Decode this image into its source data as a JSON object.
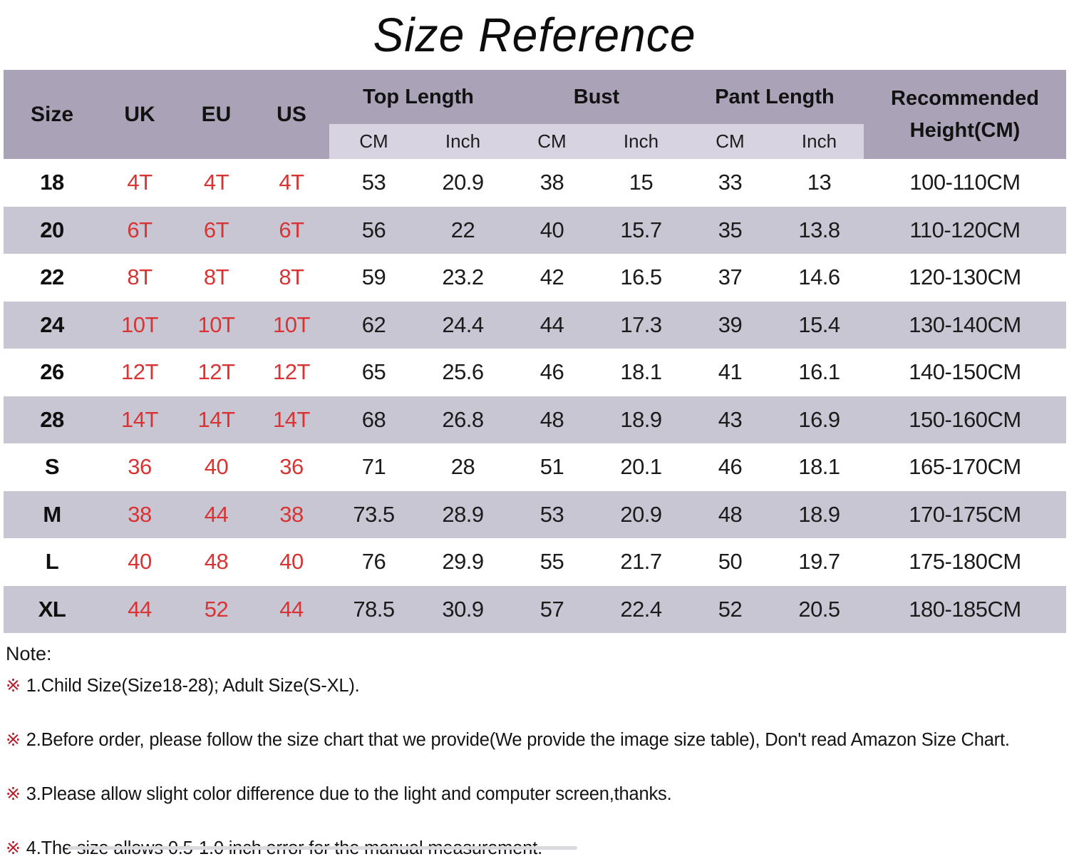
{
  "title": "Size Reference",
  "table": {
    "columns": {
      "size": "Size",
      "uk": "UK",
      "eu": "EU",
      "us": "US",
      "top_length": "Top Length",
      "bust": "Bust",
      "pant_length": "Pant Length",
      "recommended": "Recommended Height(CM)",
      "cm": "CM",
      "inch": "Inch"
    },
    "rows": [
      {
        "size": "18",
        "uk": "4T",
        "eu": "4T",
        "us": "4T",
        "top_cm": "53",
        "top_inch": "20.9",
        "bust_cm": "38",
        "bust_inch": "15",
        "pant_cm": "33",
        "pant_inch": "13",
        "height": "100-110CM"
      },
      {
        "size": "20",
        "uk": "6T",
        "eu": "6T",
        "us": "6T",
        "top_cm": "56",
        "top_inch": "22",
        "bust_cm": "40",
        "bust_inch": "15.7",
        "pant_cm": "35",
        "pant_inch": "13.8",
        "height": "110-120CM"
      },
      {
        "size": "22",
        "uk": "8T",
        "eu": "8T",
        "us": "8T",
        "top_cm": "59",
        "top_inch": "23.2",
        "bust_cm": "42",
        "bust_inch": "16.5",
        "pant_cm": "37",
        "pant_inch": "14.6",
        "height": "120-130CM"
      },
      {
        "size": "24",
        "uk": "10T",
        "eu": "10T",
        "us": "10T",
        "top_cm": "62",
        "top_inch": "24.4",
        "bust_cm": "44",
        "bust_inch": "17.3",
        "pant_cm": "39",
        "pant_inch": "15.4",
        "height": "130-140CM"
      },
      {
        "size": "26",
        "uk": "12T",
        "eu": "12T",
        "us": "12T",
        "top_cm": "65",
        "top_inch": "25.6",
        "bust_cm": "46",
        "bust_inch": "18.1",
        "pant_cm": "41",
        "pant_inch": "16.1",
        "height": "140-150CM"
      },
      {
        "size": "28",
        "uk": "14T",
        "eu": "14T",
        "us": "14T",
        "top_cm": "68",
        "top_inch": "26.8",
        "bust_cm": "48",
        "bust_inch": "18.9",
        "pant_cm": "43",
        "pant_inch": "16.9",
        "height": "150-160CM"
      },
      {
        "size": "S",
        "uk": "36",
        "eu": "40",
        "us": "36",
        "top_cm": "71",
        "top_inch": "28",
        "bust_cm": "51",
        "bust_inch": "20.1",
        "pant_cm": "46",
        "pant_inch": "18.1",
        "height": "165-170CM"
      },
      {
        "size": "M",
        "uk": "38",
        "eu": "44",
        "us": "38",
        "top_cm": "73.5",
        "top_inch": "28.9",
        "bust_cm": "53",
        "bust_inch": "20.9",
        "pant_cm": "48",
        "pant_inch": "18.9",
        "height": "170-175CM"
      },
      {
        "size": "L",
        "uk": "40",
        "eu": "48",
        "us": "40",
        "top_cm": "76",
        "top_inch": "29.9",
        "bust_cm": "55",
        "bust_inch": "21.7",
        "pant_cm": "50",
        "pant_inch": "19.7",
        "height": "175-180CM"
      },
      {
        "size": "XL",
        "uk": "44",
        "eu": "52",
        "us": "44",
        "top_cm": "78.5",
        "top_inch": "30.9",
        "bust_cm": "57",
        "bust_inch": "22.4",
        "pant_cm": "52",
        "pant_inch": "20.5",
        "height": "180-185CM"
      }
    ]
  },
  "notes": {
    "heading": "Note:",
    "marker": "※",
    "items": [
      "1.Child Size(Size18-28); Adult Size(S-XL).",
      "2.Before order, please follow the size chart that we provide(We provide the image size table), Don't read Amazon Size Chart.",
      "3.Please allow slight color difference due to the light and computer screen,thanks.",
      "4.The size allows 0.5-1.0 inch error for the manual measurement."
    ]
  },
  "colors": {
    "header_bg": "#aaa3b7",
    "subheader_bg": "#d7d3e0",
    "stripe_bg": "#c9c6d4",
    "accent_red": "#d93434",
    "note_marker_red": "#b6202c"
  },
  "chart_data": {
    "type": "table",
    "title": "Size Reference",
    "columns": [
      "Size",
      "UK",
      "EU",
      "US",
      "Top Length CM",
      "Top Length Inch",
      "Bust CM",
      "Bust Inch",
      "Pant Length CM",
      "Pant Length Inch",
      "Recommended Height(CM)"
    ],
    "rows": [
      [
        "18",
        "4T",
        "4T",
        "4T",
        53,
        20.9,
        38,
        15,
        33,
        13,
        "100-110CM"
      ],
      [
        "20",
        "6T",
        "6T",
        "6T",
        56,
        22,
        40,
        15.7,
        35,
        13.8,
        "110-120CM"
      ],
      [
        "22",
        "8T",
        "8T",
        "8T",
        59,
        23.2,
        42,
        16.5,
        37,
        14.6,
        "120-130CM"
      ],
      [
        "24",
        "10T",
        "10T",
        "10T",
        62,
        24.4,
        44,
        17.3,
        39,
        15.4,
        "130-140CM"
      ],
      [
        "26",
        "12T",
        "12T",
        "12T",
        65,
        25.6,
        46,
        18.1,
        41,
        16.1,
        "140-150CM"
      ],
      [
        "28",
        "14T",
        "14T",
        "14T",
        68,
        26.8,
        48,
        18.9,
        43,
        16.9,
        "150-160CM"
      ],
      [
        "S",
        "36",
        "40",
        "36",
        71,
        28,
        51,
        20.1,
        46,
        18.1,
        "165-170CM"
      ],
      [
        "M",
        "38",
        "44",
        "38",
        73.5,
        28.9,
        53,
        20.9,
        48,
        18.9,
        "170-175CM"
      ],
      [
        "L",
        "40",
        "48",
        "40",
        76,
        29.9,
        55,
        21.7,
        50,
        19.7,
        "175-180CM"
      ],
      [
        "XL",
        "44",
        "52",
        "44",
        78.5,
        30.9,
        57,
        22.4,
        52,
        20.5,
        "180-185CM"
      ]
    ]
  }
}
